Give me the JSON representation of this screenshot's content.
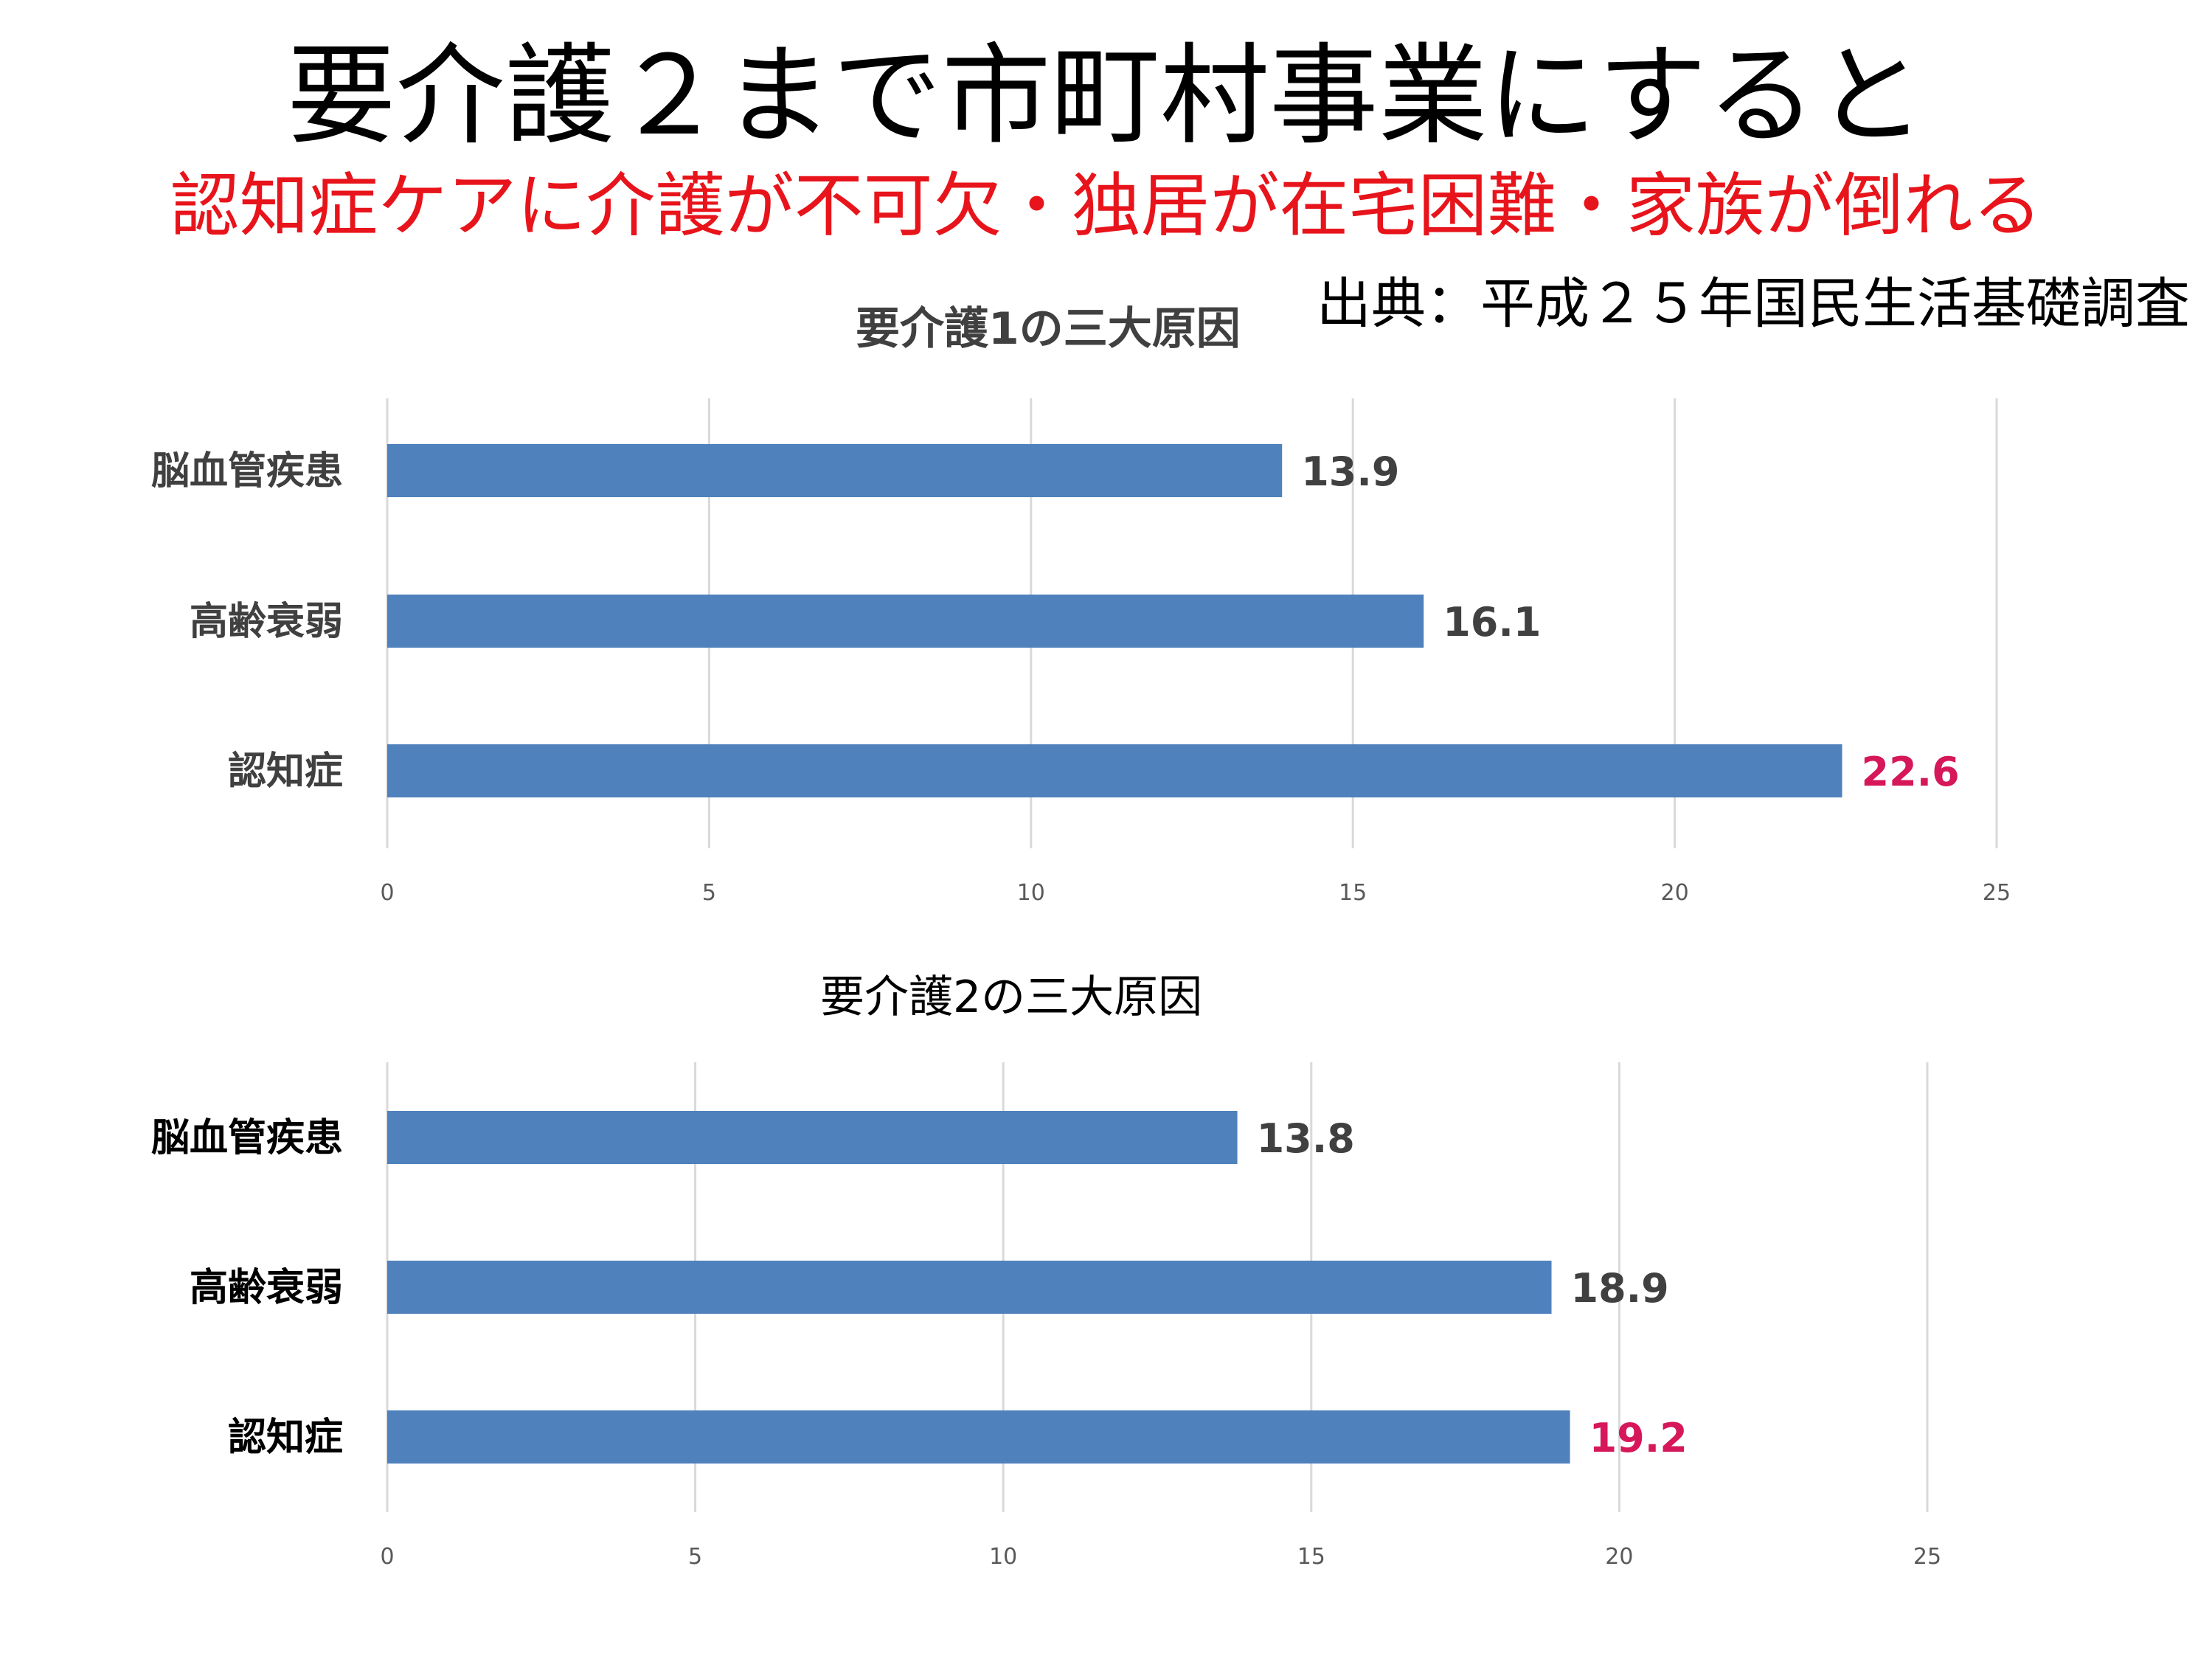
{
  "header": {
    "title": "要介護２まで市町村事業にすると",
    "subtitle": "認知症ケアに介護が不可欠・独居が在宅困難・家族が倒れる",
    "source": "出典：平成２５年国民生活基礎調査"
  },
  "colors": {
    "bar": "#4f81bd",
    "highlight_value": "#d6175a",
    "value_text": "#404040",
    "gridline": "#d9d9d9",
    "subtitle": "#e8141b"
  },
  "chart_data": [
    {
      "type": "bar",
      "orientation": "horizontal",
      "title": "要介護1の三大原因",
      "categories": [
        "脳血管疾患",
        "高齢衰弱",
        "認知症"
      ],
      "values": [
        13.9,
        16.1,
        22.6
      ],
      "value_labels": [
        "13.9",
        "16.1",
        "22.6"
      ],
      "highlight_index": 2,
      "xlim": [
        0,
        25
      ],
      "xticks": [
        0,
        5,
        10,
        15,
        20,
        25
      ],
      "grid": true,
      "category_label_color": "#404040"
    },
    {
      "type": "bar",
      "orientation": "horizontal",
      "title": "要介護2の三大原因",
      "categories": [
        "脳血管疾患",
        "高齢衰弱",
        "認知症"
      ],
      "values": [
        13.8,
        18.9,
        19.2
      ],
      "value_labels": [
        "13.8",
        "18.9",
        "19.2"
      ],
      "highlight_index": 2,
      "xlim": [
        0,
        25
      ],
      "xticks": [
        0,
        5,
        10,
        15,
        20,
        25
      ],
      "grid": true,
      "category_label_color": "#000000"
    }
  ]
}
